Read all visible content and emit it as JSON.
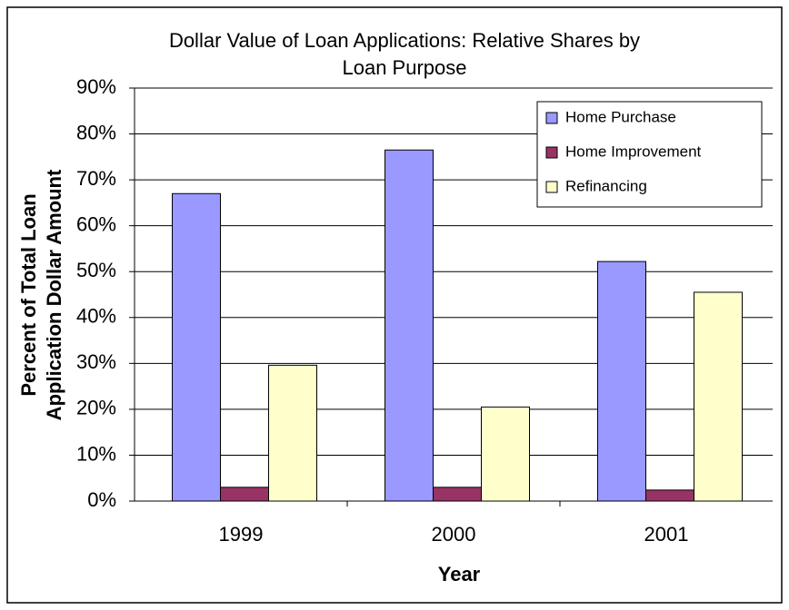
{
  "chart_data": {
    "type": "bar",
    "title": [
      "Dollar Value of Loan Applications:  Relative Shares by",
      "Loan Purpose"
    ],
    "x_label": "Year",
    "y_label": [
      "Percent of Total Loan",
      "Application Dollar Amount"
    ],
    "categories": [
      "1999",
      "2000",
      "2001"
    ],
    "series": [
      {
        "name": "Home Purchase",
        "color": "#9999ff",
        "values": [
          67,
          76.5,
          52.2
        ]
      },
      {
        "name": "Home Improvement",
        "color": "#993366",
        "values": [
          3,
          3,
          2.4
        ]
      },
      {
        "name": "Refinancing",
        "color": "#ffffcc",
        "values": [
          29.6,
          20.5,
          45.5
        ]
      }
    ],
    "ylim": [
      0,
      90
    ],
    "yticks": [
      {
        "value": 0,
        "label": "0%"
      },
      {
        "value": 10,
        "label": "10%"
      },
      {
        "value": 20,
        "label": "20%"
      },
      {
        "value": 30,
        "label": "30%"
      },
      {
        "value": 40,
        "label": "40%"
      },
      {
        "value": 50,
        "label": "50%"
      },
      {
        "value": 60,
        "label": "60%"
      },
      {
        "value": 70,
        "label": "70%"
      },
      {
        "value": 80,
        "label": "80%"
      },
      {
        "value": 90,
        "label": "90%"
      }
    ],
    "grid": true,
    "legend": "upper right"
  }
}
